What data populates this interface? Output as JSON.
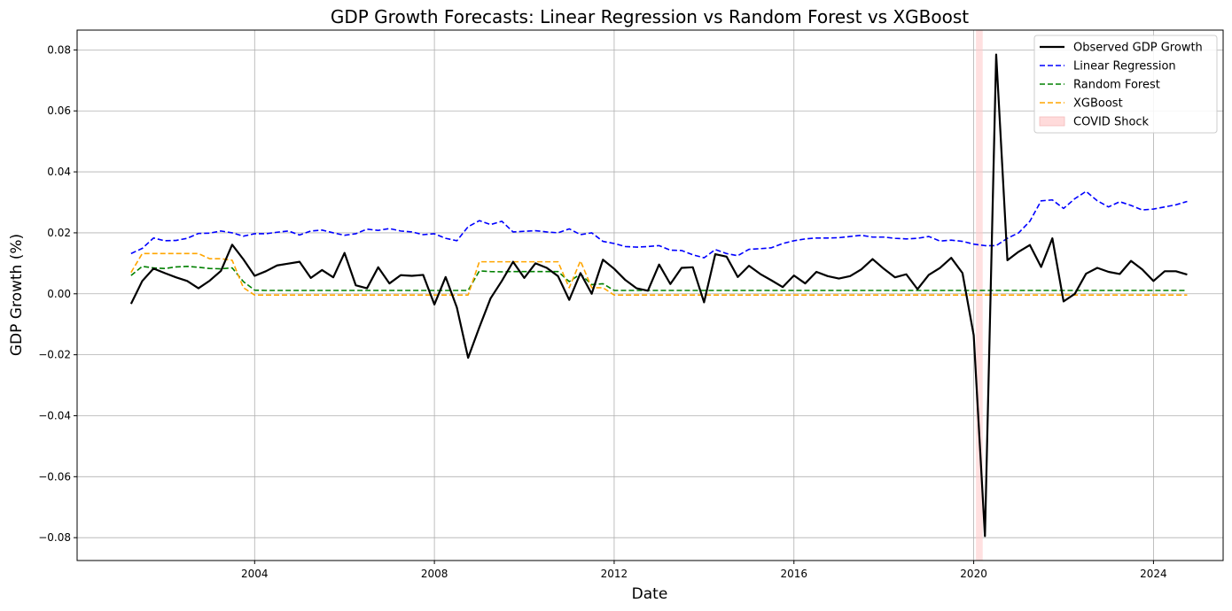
{
  "chart_data": {
    "type": "line",
    "title": "GDP Growth Forecasts: Linear Regression vs Random Forest vs XGBoost",
    "xlabel": "Date",
    "ylabel": "GDP Growth (%)",
    "xlim": [
      2000.05,
      2025.55
    ],
    "ylim": [
      -0.0875,
      0.0865
    ],
    "x_ticks": [
      "2004",
      "2008",
      "2012",
      "2016",
      "2020",
      "2024"
    ],
    "y_ticks": [
      "0.08",
      "0.06",
      "0.04",
      "0.02",
      "0.00",
      "−0.02",
      "−0.04",
      "−0.06",
      "−0.08"
    ],
    "grid": true,
    "legend_position": "top-right",
    "x_start": 2001.25,
    "x_step": 0.25,
    "colors": {
      "observed": "#000000",
      "linear": "#0000ff",
      "forest": "#008000",
      "xgb": "#ffa500",
      "covid": "#ffcccc"
    },
    "shock": {
      "name": "COVID Shock",
      "start": 2020.05,
      "end": 2020.2
    },
    "series": [
      {
        "name": "Observed GDP Growth",
        "style": "solid",
        "values": [
          -0.0033,
          0.0042,
          0.0083,
          0.0068,
          0.0054,
          0.0042,
          0.0018,
          0.0043,
          0.0075,
          0.0161,
          0.0113,
          0.0059,
          0.0074,
          0.0093,
          0.0099,
          0.0105,
          0.0052,
          0.0078,
          0.0054,
          0.0134,
          0.0028,
          0.0018,
          0.0087,
          0.0034,
          0.0061,
          0.0059,
          0.0062,
          -0.0035,
          0.0055,
          -0.0045,
          -0.021,
          -0.011,
          -0.0015,
          0.0042,
          0.0105,
          0.0052,
          0.01,
          0.0085,
          0.0058,
          -0.002,
          0.0068,
          0.0,
          0.0112,
          0.0082,
          0.0045,
          0.0018,
          0.001,
          0.0096,
          0.0032,
          0.0085,
          0.0087,
          -0.0028,
          0.013,
          0.0122,
          0.0055,
          0.0092,
          0.0065,
          0.0044,
          0.0022,
          0.006,
          0.0034,
          0.0072,
          0.0058,
          0.005,
          0.0058,
          0.008,
          0.0114,
          0.0082,
          0.0054,
          0.0064,
          0.0015,
          0.0062,
          0.0085,
          0.0118,
          0.0068,
          -0.0136,
          -0.0795,
          0.0785,
          0.011,
          0.0138,
          0.016,
          0.0088,
          0.0182,
          -0.0025,
          0.0,
          0.0066,
          0.0085,
          0.0072,
          0.0065,
          0.0108,
          0.008,
          0.0042,
          0.0074,
          0.0074,
          0.0063
        ]
      },
      {
        "name": "Linear Regression",
        "style": "dashed",
        "values": [
          0.0132,
          0.0149,
          0.0183,
          0.0174,
          0.0175,
          0.0182,
          0.0198,
          0.0199,
          0.0206,
          0.02,
          0.0189,
          0.0197,
          0.0197,
          0.0202,
          0.0206,
          0.0193,
          0.0206,
          0.0209,
          0.02,
          0.0192,
          0.0197,
          0.0212,
          0.0208,
          0.0214,
          0.0206,
          0.0203,
          0.0194,
          0.0197,
          0.0182,
          0.0174,
          0.022,
          0.024,
          0.0227,
          0.0238,
          0.0203,
          0.0205,
          0.0207,
          0.0203,
          0.02,
          0.0213,
          0.0194,
          0.02,
          0.0172,
          0.0165,
          0.0155,
          0.0153,
          0.0155,
          0.0158,
          0.0143,
          0.0142,
          0.0128,
          0.0118,
          0.0145,
          0.0132,
          0.0125,
          0.0146,
          0.0148,
          0.0151,
          0.0165,
          0.0174,
          0.018,
          0.0183,
          0.0183,
          0.0184,
          0.0188,
          0.0192,
          0.0186,
          0.0186,
          0.0182,
          0.018,
          0.0182,
          0.0188,
          0.0173,
          0.0176,
          0.0172,
          0.0163,
          0.0158,
          0.0158,
          0.0182,
          0.02,
          0.0238,
          0.0305,
          0.0308,
          0.028,
          0.0312,
          0.0336,
          0.0305,
          0.0285,
          0.0302,
          0.029,
          0.0275,
          0.0278,
          0.0285,
          0.0292,
          0.0303
        ]
      },
      {
        "name": "Random Forest",
        "style": "dashed",
        "values": [
          0.006,
          0.009,
          0.0085,
          0.0083,
          0.0088,
          0.009,
          0.0087,
          0.0083,
          0.0082,
          0.0085,
          0.004,
          0.0012,
          0.0011,
          0.0011,
          0.0011,
          0.0011,
          0.0011,
          0.0011,
          0.0011,
          0.0011,
          0.0011,
          0.0011,
          0.0011,
          0.0011,
          0.0011,
          0.0011,
          0.0011,
          0.0011,
          0.0011,
          0.0011,
          0.0011,
          0.0075,
          0.0073,
          0.0072,
          0.0073,
          0.0073,
          0.0073,
          0.0073,
          0.0073,
          0.004,
          0.0065,
          0.003,
          0.0033,
          0.0011,
          0.0011,
          0.0011,
          0.0011,
          0.0011,
          0.0011,
          0.0011,
          0.0011,
          0.0011,
          0.0011,
          0.0011,
          0.0011,
          0.0011,
          0.0011,
          0.0011,
          0.0011,
          0.0011,
          0.0011,
          0.0011,
          0.0011,
          0.0011,
          0.0011,
          0.0011,
          0.0011,
          0.0011,
          0.0011,
          0.0011,
          0.0011,
          0.0011,
          0.0011,
          0.0011,
          0.0011,
          0.0011,
          0.0011,
          0.0011,
          0.0011,
          0.0011,
          0.0011,
          0.0011,
          0.0011,
          0.0011,
          0.0011,
          0.0011,
          0.0011,
          0.0011,
          0.0011,
          0.0011,
          0.0011,
          0.0011,
          0.0011,
          0.0011,
          0.0011
        ]
      },
      {
        "name": "XGBoost",
        "style": "dashed",
        "values": [
          0.007,
          0.0132,
          0.0132,
          0.0132,
          0.0132,
          0.0132,
          0.0132,
          0.0115,
          0.0115,
          0.011,
          0.002,
          -0.0004,
          -0.0004,
          -0.0004,
          -0.0004,
          -0.0004,
          -0.0004,
          -0.0004,
          -0.0004,
          -0.0004,
          -0.0004,
          -0.0004,
          -0.0004,
          -0.0004,
          -0.0004,
          -0.0004,
          -0.0004,
          -0.0004,
          -0.0004,
          -0.0004,
          -0.0004,
          0.0105,
          0.0105,
          0.0105,
          0.0105,
          0.0105,
          0.0105,
          0.0105,
          0.0105,
          0.002,
          0.0108,
          0.002,
          0.002,
          -0.0004,
          -0.0004,
          -0.0004,
          -0.0004,
          -0.0004,
          -0.0004,
          -0.0004,
          -0.0004,
          -0.0004,
          -0.0004,
          -0.0004,
          -0.0004,
          -0.0004,
          -0.0004,
          -0.0004,
          -0.0004,
          -0.0004,
          -0.0004,
          -0.0004,
          -0.0004,
          -0.0004,
          -0.0004,
          -0.0004,
          -0.0004,
          -0.0004,
          -0.0004,
          -0.0004,
          -0.0004,
          -0.0004,
          -0.0004,
          -0.0004,
          -0.0004,
          -0.0004,
          -0.0004,
          -0.0004,
          -0.0004,
          -0.0004,
          -0.0004,
          -0.0004,
          -0.0004,
          -0.0004,
          -0.0004,
          -0.0004,
          -0.0004,
          -0.0004,
          -0.0004,
          -0.0004,
          -0.0004,
          -0.0004,
          -0.0004,
          -0.0004,
          -0.0004
        ]
      }
    ]
  }
}
